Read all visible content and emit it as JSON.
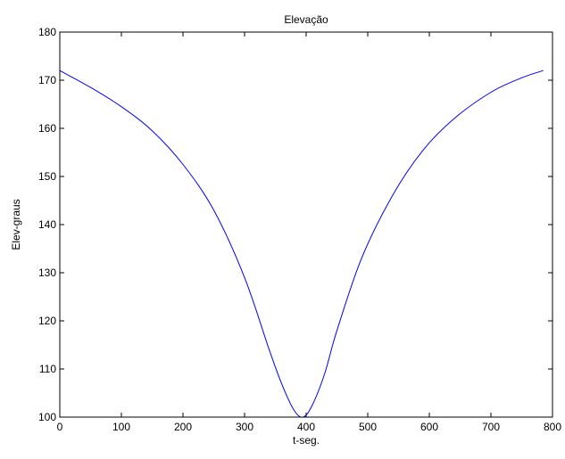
{
  "chart_data": {
    "type": "line",
    "title": "Elevação",
    "xlabel": "t-seg.",
    "ylabel": "Elev-graus",
    "xlim": [
      0,
      800
    ],
    "ylim": [
      100,
      180
    ],
    "xticks": [
      0,
      100,
      200,
      300,
      400,
      500,
      600,
      700,
      800
    ],
    "yticks": [
      100,
      110,
      120,
      130,
      140,
      150,
      160,
      170,
      180
    ],
    "grid": false,
    "legend": "none",
    "series": [
      {
        "color": "#0000ff",
        "x": [
          0,
          50,
          100,
          150,
          200,
          250,
          300,
          340,
          360,
          380,
          395,
          410,
          430,
          450,
          490,
          540,
          590,
          640,
          700,
          750,
          785
        ],
        "y": [
          172,
          168.5,
          164.5,
          159.5,
          152.5,
          143,
          129,
          114,
          107,
          101.5,
          100,
          102.5,
          109,
          118,
          133,
          146,
          155.5,
          162,
          167.5,
          170.5,
          172
        ]
      }
    ]
  }
}
